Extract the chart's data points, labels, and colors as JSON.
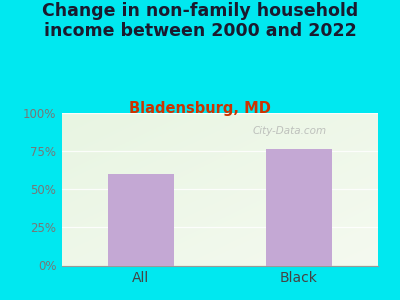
{
  "title": "Change in non-family household\nincome between 2000 and 2022",
  "subtitle": "Bladensburg, MD",
  "categories": [
    "All",
    "Black"
  ],
  "values": [
    60,
    76
  ],
  "bar_color": "#c4a8d4",
  "title_color": "#1a1a2e",
  "subtitle_color": "#cc3300",
  "ytick_label_color": "#777777",
  "xtick_label_color": "#444444",
  "background_outer": "#00e8f0",
  "background_inner_topleft": "#e8f5e2",
  "background_inner_bottomright": "#f5faf0",
  "ylim": [
    0,
    100
  ],
  "yticks": [
    0,
    25,
    50,
    75,
    100
  ],
  "ytick_labels": [
    "0%",
    "25%",
    "50%",
    "75%",
    "100%"
  ],
  "watermark": "City-Data.com",
  "title_fontsize": 12.5,
  "subtitle_fontsize": 10.5
}
